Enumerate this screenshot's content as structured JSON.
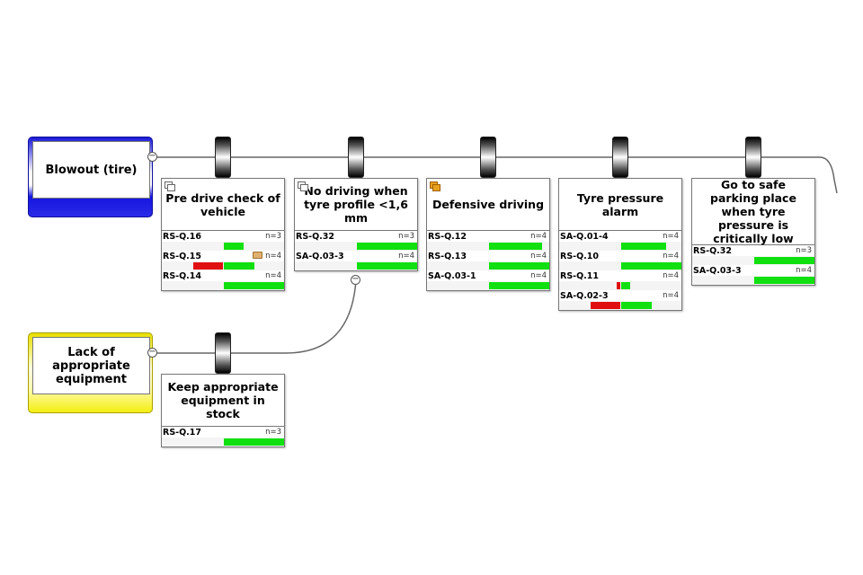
{
  "colors": {
    "positive": "#10e010",
    "negative": "#e01010",
    "threat_primary": "#1414e0",
    "threat_secondary": "#f4ee10"
  },
  "threats": [
    {
      "label": "Blowout (tire)",
      "color": "blue"
    },
    {
      "label": "Lack of appropriate equipment",
      "color": "yellow"
    }
  ],
  "barriers": [
    {
      "title": "Pre drive check of vehicle",
      "icon": "linked-windows-icon",
      "rows": [
        {
          "id": "RS-Q.16",
          "n": "n=3",
          "red": 0,
          "green": 0.33
        },
        {
          "id": "RS-Q.15",
          "n": "n=4",
          "red": 0.5,
          "green": 0.5,
          "comment": true
        },
        {
          "id": "RS-Q.14",
          "n": "n=4",
          "red": 0,
          "green": 1.0
        }
      ]
    },
    {
      "title": "No driving when tyre profile <1,6 mm",
      "icon": "linked-windows-icon",
      "rows": [
        {
          "id": "RS-Q.32",
          "n": "n=3",
          "red": 0,
          "green": 1.0
        },
        {
          "id": "SA-Q.03-3",
          "n": "n=4",
          "red": 0,
          "green": 1.0
        }
      ]
    },
    {
      "title": "Defensive driving",
      "icon": "linked-windows-orange-icon",
      "rows": [
        {
          "id": "RS-Q.12",
          "n": "n=4",
          "red": 0,
          "green": 0.88
        },
        {
          "id": "RS-Q.13",
          "n": "n=4",
          "red": 0,
          "green": 1.0
        },
        {
          "id": "SA-Q.03-1",
          "n": "n=4",
          "red": 0,
          "green": 1.0
        }
      ]
    },
    {
      "title": "Tyre pressure alarm",
      "rows": [
        {
          "id": "SA-Q.01-4",
          "n": "n=4",
          "red": 0,
          "green": 0.75
        },
        {
          "id": "RS-Q.10",
          "n": "n=4",
          "red": 0,
          "green": 1.0
        },
        {
          "id": "RS-Q.11",
          "n": "n=4",
          "red": 0.06,
          "green": 0.15
        },
        {
          "id": "SA-Q.02-3",
          "n": "n=4",
          "red": 0.5,
          "green": 0.5
        }
      ]
    },
    {
      "title": "Go to safe parking place when tyre pressure is critically low",
      "rows": [
        {
          "id": "RS-Q.32",
          "n": "n=3",
          "red": 0,
          "green": 1.0
        },
        {
          "id": "SA-Q.03-3",
          "n": "n=4",
          "red": 0,
          "green": 1.0
        }
      ]
    },
    {
      "title": "Keep appropriate equipment in stock",
      "rows": [
        {
          "id": "RS-Q.17",
          "n": "n=3",
          "red": 0,
          "green": 1.0
        }
      ]
    }
  ]
}
